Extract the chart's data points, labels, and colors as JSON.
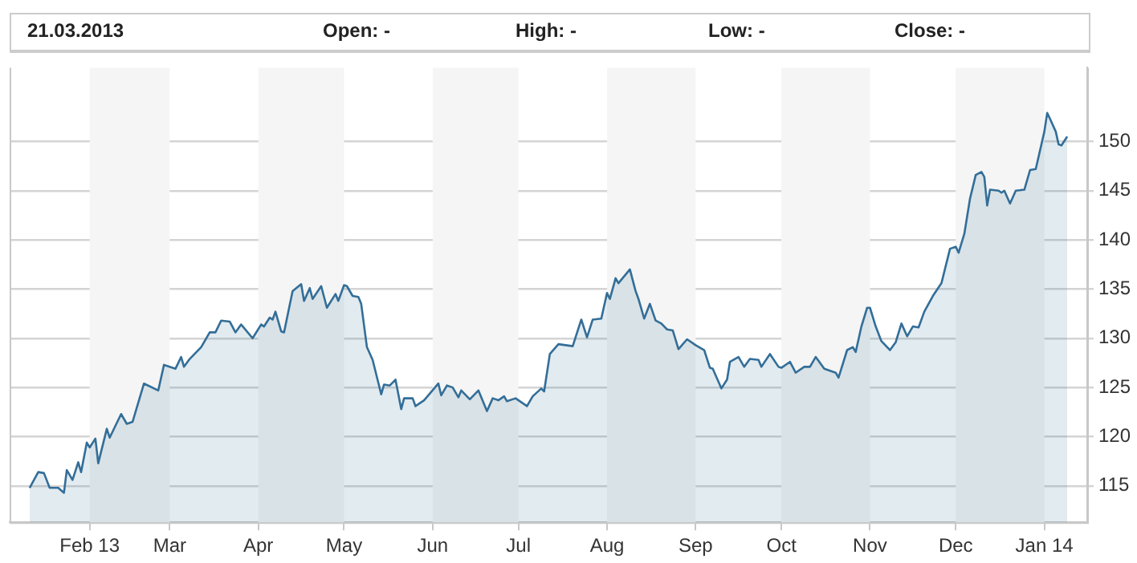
{
  "chart_data": {
    "type": "area",
    "annotations": [
      "21.03.2013",
      "Open: -",
      "High: -",
      "Low: -",
      "Close: -"
    ],
    "series": [
      {
        "color": "#336e98",
        "x": [
          "2013-01-11",
          "2013-01-14",
          "2013-01-16",
          "2013-01-18",
          "2013-01-21",
          "2013-01-23",
          "2013-01-24",
          "2013-01-26",
          "2013-01-28",
          "2013-01-29",
          "2013-01-31",
          "2013-02-01",
          "2013-02-03",
          "2013-02-04",
          "2013-02-07",
          "2013-02-08",
          "2013-02-12",
          "2013-02-14",
          "2013-02-16",
          "2013-02-20",
          "2013-02-25",
          "2013-02-27",
          "2013-03-03",
          "2013-03-05",
          "2013-03-06",
          "2013-03-08",
          "2013-03-12",
          "2013-03-15",
          "2013-03-17",
          "2013-03-19",
          "2013-03-22",
          "2013-03-24",
          "2013-03-26",
          "2013-03-30",
          "2013-04-02",
          "2013-04-03",
          "2013-04-05",
          "2013-04-06",
          "2013-04-07",
          "2013-04-09",
          "2013-04-10",
          "2013-04-12",
          "2013-04-13",
          "2013-04-16",
          "2013-04-17",
          "2013-04-19",
          "2013-04-20",
          "2013-04-23",
          "2013-04-25",
          "2013-04-28",
          "2013-04-29",
          "2013-05-01",
          "2013-05-02",
          "2013-05-04",
          "2013-05-06",
          "2013-05-07",
          "2013-05-09",
          "2013-05-11",
          "2013-05-14",
          "2013-05-15",
          "2013-05-17",
          "2013-05-19",
          "2013-05-21",
          "2013-05-22",
          "2013-05-25",
          "2013-05-26",
          "2013-05-29",
          "2013-06-03",
          "2013-06-04",
          "2013-06-06",
          "2013-06-08",
          "2013-06-10",
          "2013-06-11",
          "2013-06-14",
          "2013-06-17",
          "2013-06-20",
          "2013-06-22",
          "2013-06-24",
          "2013-06-26",
          "2013-06-27",
          "2013-06-30",
          "2013-07-04",
          "2013-07-06",
          "2013-07-09",
          "2013-07-10",
          "2013-07-12",
          "2013-07-15",
          "2013-07-20",
          "2013-07-23",
          "2013-07-25",
          "2013-07-27",
          "2013-07-30",
          "2013-08-01",
          "2013-08-02",
          "2013-08-04",
          "2013-08-05",
          "2013-08-09",
          "2013-08-11",
          "2013-08-12",
          "2013-08-14",
          "2013-08-16",
          "2013-08-18",
          "2013-08-20",
          "2013-08-22",
          "2013-08-24",
          "2013-08-26",
          "2013-08-29",
          "2013-09-01",
          "2013-09-04",
          "2013-09-06",
          "2013-09-07",
          "2013-09-10",
          "2013-09-12",
          "2013-09-13",
          "2013-09-16",
          "2013-09-18",
          "2013-09-20",
          "2013-09-23",
          "2013-09-24",
          "2013-09-27",
          "2013-09-30",
          "2013-10-01",
          "2013-10-04",
          "2013-10-06",
          "2013-10-09",
          "2013-10-11",
          "2013-10-13",
          "2013-10-16",
          "2013-10-20",
          "2013-10-21",
          "2013-10-24",
          "2013-10-26",
          "2013-10-27",
          "2013-10-29",
          "2013-10-31",
          "2013-11-01",
          "2013-11-03",
          "2013-11-05",
          "2013-11-08",
          "2013-11-10",
          "2013-11-12",
          "2013-11-14",
          "2013-11-16",
          "2013-11-18",
          "2013-11-20",
          "2013-11-23",
          "2013-11-26",
          "2013-11-29",
          "2013-12-01",
          "2013-12-02",
          "2013-12-04",
          "2013-12-06",
          "2013-12-08",
          "2013-12-10",
          "2013-12-11",
          "2013-12-12",
          "2013-12-13",
          "2013-12-16",
          "2013-12-17",
          "2013-12-18",
          "2013-12-20",
          "2013-12-22",
          "2013-12-25",
          "2013-12-27",
          "2013-12-29",
          "2014-01-01",
          "2014-01-02",
          "2014-01-03",
          "2014-01-05",
          "2014-01-06",
          "2014-01-07",
          "2014-01-09"
        ],
        "values": [
          114.8,
          116.4,
          116.3,
          114.8,
          114.8,
          114.3,
          116.6,
          115.6,
          117.4,
          116.4,
          119.4,
          118.9,
          119.8,
          117.3,
          120.8,
          119.9,
          122.3,
          121.3,
          121.5,
          125.4,
          124.7,
          127.3,
          126.9,
          128.1,
          127.1,
          127.9,
          129.1,
          130.6,
          130.6,
          131.8,
          131.7,
          130.6,
          131.4,
          130.0,
          131.4,
          131.2,
          132.1,
          131.9,
          132.7,
          130.7,
          130.6,
          133.4,
          134.8,
          135.5,
          133.8,
          135.1,
          134.0,
          135.3,
          133.1,
          134.5,
          133.8,
          135.4,
          135.3,
          134.3,
          134.2,
          133.5,
          129.1,
          127.8,
          124.3,
          125.3,
          125.2,
          125.8,
          122.8,
          123.9,
          123.9,
          123.1,
          123.7,
          125.4,
          124.2,
          125.2,
          125.0,
          124.0,
          124.7,
          123.8,
          124.7,
          122.6,
          123.9,
          123.7,
          124.1,
          123.6,
          123.9,
          123.1,
          124.1,
          124.9,
          124.6,
          128.4,
          129.4,
          129.2,
          131.9,
          130.1,
          131.9,
          132.0,
          134.6,
          134.0,
          136.1,
          135.6,
          137.0,
          134.8,
          134.0,
          132.0,
          133.5,
          131.8,
          131.5,
          130.9,
          130.8,
          128.9,
          129.9,
          129.3,
          128.8,
          127.0,
          126.9,
          124.9,
          125.8,
          127.6,
          128.1,
          127.1,
          127.9,
          127.8,
          127.1,
          128.4,
          127.1,
          127.0,
          127.6,
          126.5,
          127.1,
          127.1,
          128.1,
          126.9,
          126.5,
          126.0,
          128.8,
          129.1,
          128.6,
          131.2,
          133.1,
          133.1,
          131.2,
          129.7,
          128.8,
          129.6,
          131.5,
          130.2,
          131.2,
          131.1,
          132.7,
          134.3,
          135.6,
          139.1,
          139.3,
          138.7,
          140.6,
          144.2,
          146.6,
          146.9,
          146.4,
          143.5,
          145.1,
          145.0,
          144.8,
          145.0,
          143.7,
          145.0,
          145.1,
          147.1,
          147.2,
          151.0,
          152.9,
          152.3,
          151.0,
          149.7,
          149.6,
          150.5
        ]
      }
    ],
    "xlim": [
      "2013-01-04",
      "2014-01-16"
    ],
    "xticks": [
      {
        "value": "2013-02-01",
        "label": "Feb 13"
      },
      {
        "value": "2013-03-01",
        "label": "Mar"
      },
      {
        "value": "2013-04-01",
        "label": "Apr"
      },
      {
        "value": "2013-05-01",
        "label": "May"
      },
      {
        "value": "2013-06-01",
        "label": "Jun"
      },
      {
        "value": "2013-07-01",
        "label": "Jul"
      },
      {
        "value": "2013-08-01",
        "label": "Aug"
      },
      {
        "value": "2013-09-01",
        "label": "Sep"
      },
      {
        "value": "2013-10-01",
        "label": "Oct"
      },
      {
        "value": "2013-11-01",
        "label": "Nov"
      },
      {
        "value": "2013-12-01",
        "label": "Dec"
      },
      {
        "value": "2014-01-01",
        "label": "Jan 14"
      }
    ],
    "ylim": [
      111.3,
      157.5
    ],
    "yticks": [
      115,
      120,
      125,
      130,
      135,
      140,
      145,
      150
    ],
    "grid": "y",
    "bands": [
      {
        "axis": "x",
        "from": "2013-02-01",
        "to": "2013-03-01",
        "color": "#f5f5f5"
      },
      {
        "axis": "x",
        "from": "2013-04-01",
        "to": "2013-05-01",
        "color": "#f5f5f5"
      },
      {
        "axis": "x",
        "from": "2013-06-01",
        "to": "2013-07-01",
        "color": "#f5f5f5"
      },
      {
        "axis": "x",
        "from": "2013-08-01",
        "to": "2013-09-01",
        "color": "#f5f5f5"
      },
      {
        "axis": "x",
        "from": "2013-10-01",
        "to": "2013-11-01",
        "color": "#f5f5f5"
      },
      {
        "axis": "x",
        "from": "2013-12-01",
        "to": "2014-01-01",
        "color": "#f5f5f5"
      }
    ],
    "marker": "none",
    "line_style": "solid"
  }
}
